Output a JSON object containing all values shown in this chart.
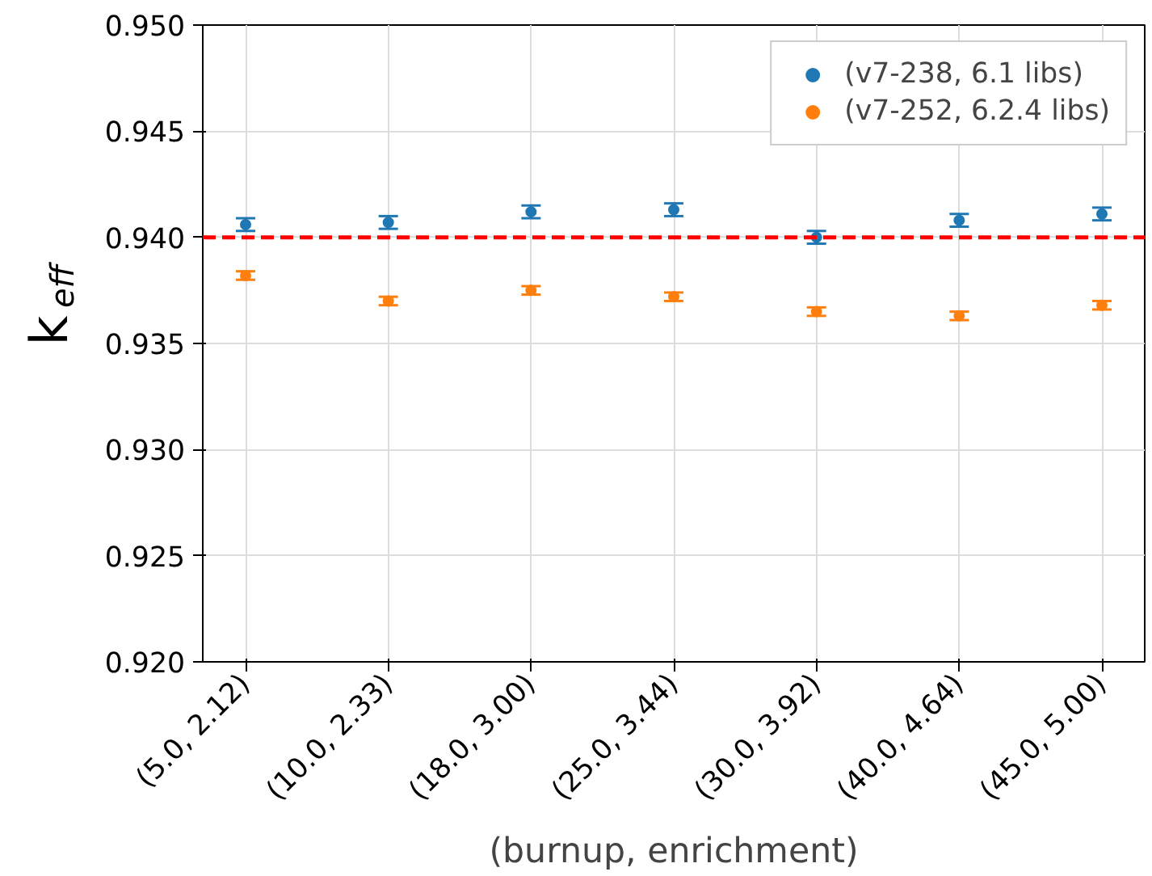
{
  "chart_data": {
    "type": "scatter",
    "xlabel": "(burnup, enrichment)",
    "ylabel": "k$_{eff}$",
    "categories": [
      "(5.0, 2.12)",
      "(10.0, 2.33)",
      "(18.0, 3.00)",
      "(25.0, 3.44)",
      "(30.0, 3.92)",
      "(40.0, 4.64)",
      "(45.0, 5.00)"
    ],
    "series": [
      {
        "name": "(v7-238, 6.1 libs)",
        "color": "#1f77b4",
        "values": [
          0.9406,
          0.9407,
          0.9412,
          0.9413,
          0.94,
          0.9408,
          0.9411
        ],
        "errors": [
          0.0003,
          0.0003,
          0.0003,
          0.0003,
          0.0003,
          0.0003,
          0.0003
        ]
      },
      {
        "name": "(v7-252, 6.2.4 libs)",
        "color": "#ff7f0e",
        "values": [
          0.9382,
          0.937,
          0.9375,
          0.9372,
          0.9365,
          0.9363,
          0.9368
        ],
        "errors": [
          0.0002,
          0.0002,
          0.0002,
          0.0002,
          0.0002,
          0.0002,
          0.0002
        ]
      }
    ],
    "ylim": [
      0.92,
      0.95
    ],
    "yticks": [
      {
        "value": 0.92,
        "label": "0.920"
      },
      {
        "value": 0.925,
        "label": "0.925"
      },
      {
        "value": 0.93,
        "label": "0.930"
      },
      {
        "value": 0.935,
        "label": "0.935"
      },
      {
        "value": 0.94,
        "label": "0.940"
      },
      {
        "value": 0.945,
        "label": "0.945"
      },
      {
        "value": 0.95,
        "label": "0.950"
      }
    ],
    "ref_lines": [
      {
        "axis": "y",
        "value": 0.94,
        "color": "#ff0000",
        "line_style": "dashed"
      }
    ],
    "grid": true,
    "legend": "top right",
    "marker": "circle"
  }
}
